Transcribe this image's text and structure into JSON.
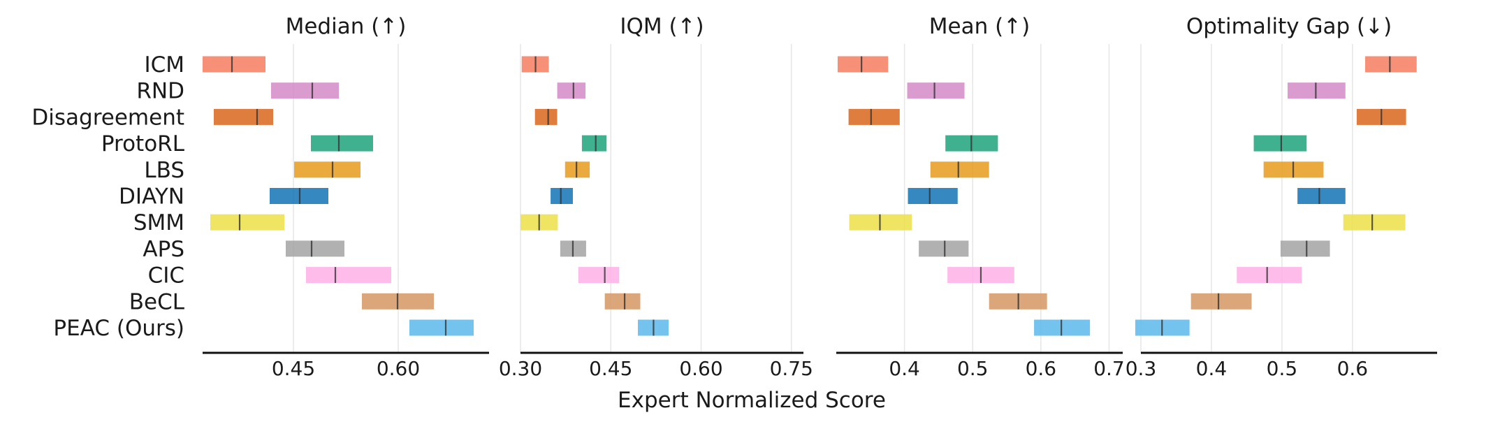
{
  "colors": {
    "ICM": "#f57c5e",
    "RND": "#d48ac7",
    "Disagreement": "#d9661c",
    "ProtoRL": "#1fa37a",
    "LBS": "#e89b1c",
    "DIAYN": "#1273b5",
    "SMM": "#ede047",
    "APS": "#a3a3a3",
    "CIC": "#fdb0e6",
    "BeCL": "#d39763",
    "PEAC (Ours)": "#5cb8ec"
  },
  "chart_data": {
    "type": "interval",
    "xlabel": "Expert Normalized Score",
    "methods": [
      "ICM",
      "RND",
      "Disagreement",
      "ProtoRL",
      "LBS",
      "DIAYN",
      "SMM",
      "APS",
      "CIC",
      "BeCL",
      "PEAC (Ours)"
    ],
    "panels": [
      {
        "title": "Median (↑)",
        "xlim": [
          0.32,
          0.73
        ],
        "ticks": [
          0.45,
          0.6
        ],
        "tick_labels": [
          "0.45",
          "0.60"
        ],
        "intervals": [
          {
            "method": "ICM",
            "low": 0.32,
            "mid": 0.362,
            "high": 0.41
          },
          {
            "method": "RND",
            "low": 0.418,
            "mid": 0.477,
            "high": 0.515
          },
          {
            "method": "Disagreement",
            "low": 0.336,
            "mid": 0.398,
            "high": 0.421
          },
          {
            "method": "ProtoRL",
            "low": 0.475,
            "mid": 0.515,
            "high": 0.564
          },
          {
            "method": "LBS",
            "low": 0.451,
            "mid": 0.506,
            "high": 0.546
          },
          {
            "method": "DIAYN",
            "low": 0.416,
            "mid": 0.459,
            "high": 0.5
          },
          {
            "method": "SMM",
            "low": 0.331,
            "mid": 0.373,
            "high": 0.437
          },
          {
            "method": "APS",
            "low": 0.439,
            "mid": 0.476,
            "high": 0.523
          },
          {
            "method": "CIC",
            "low": 0.468,
            "mid": 0.51,
            "high": 0.59
          },
          {
            "method": "BeCL",
            "low": 0.548,
            "mid": 0.599,
            "high": 0.651
          },
          {
            "method": "PEAC (Ours)",
            "low": 0.616,
            "mid": 0.668,
            "high": 0.708
          }
        ]
      },
      {
        "title": "IQM (↑)",
        "xlim": [
          0.3,
          0.77
        ],
        "ticks": [
          0.3,
          0.45,
          0.6,
          0.75
        ],
        "tick_labels": [
          "0.30",
          "0.45",
          "0.60",
          "0.75"
        ],
        "intervals": [
          {
            "method": "ICM",
            "low": 0.302,
            "mid": 0.325,
            "high": 0.347
          },
          {
            "method": "RND",
            "low": 0.361,
            "mid": 0.388,
            "high": 0.408
          },
          {
            "method": "Disagreement",
            "low": 0.324,
            "mid": 0.346,
            "high": 0.361
          },
          {
            "method": "ProtoRL",
            "low": 0.402,
            "mid": 0.425,
            "high": 0.443
          },
          {
            "method": "LBS",
            "low": 0.374,
            "mid": 0.393,
            "high": 0.415
          },
          {
            "method": "DIAYN",
            "low": 0.35,
            "mid": 0.367,
            "high": 0.387
          },
          {
            "method": "SMM",
            "low": 0.3,
            "mid": 0.331,
            "high": 0.362
          },
          {
            "method": "APS",
            "low": 0.366,
            "mid": 0.387,
            "high": 0.409
          },
          {
            "method": "CIC",
            "low": 0.396,
            "mid": 0.44,
            "high": 0.464
          },
          {
            "method": "BeCL",
            "low": 0.44,
            "mid": 0.473,
            "high": 0.499
          },
          {
            "method": "PEAC (Ours)",
            "low": 0.495,
            "mid": 0.521,
            "high": 0.546
          }
        ]
      },
      {
        "title": "Mean (↑)",
        "xlim": [
          0.3,
          0.72
        ],
        "ticks": [
          0.4,
          0.5,
          0.6,
          0.7
        ],
        "tick_labels": [
          "0.4",
          "0.5",
          "0.6",
          "0.7"
        ],
        "intervals": [
          {
            "method": "ICM",
            "low": 0.302,
            "mid": 0.337,
            "high": 0.376
          },
          {
            "method": "RND",
            "low": 0.404,
            "mid": 0.444,
            "high": 0.488
          },
          {
            "method": "Disagreement",
            "low": 0.318,
            "mid": 0.351,
            "high": 0.393
          },
          {
            "method": "ProtoRL",
            "low": 0.46,
            "mid": 0.498,
            "high": 0.537
          },
          {
            "method": "LBS",
            "low": 0.438,
            "mid": 0.479,
            "high": 0.524
          },
          {
            "method": "DIAYN",
            "low": 0.405,
            "mid": 0.437,
            "high": 0.478
          },
          {
            "method": "SMM",
            "low": 0.319,
            "mid": 0.364,
            "high": 0.411
          },
          {
            "method": "APS",
            "low": 0.421,
            "mid": 0.459,
            "high": 0.494
          },
          {
            "method": "CIC",
            "low": 0.463,
            "mid": 0.512,
            "high": 0.561
          },
          {
            "method": "BeCL",
            "low": 0.524,
            "mid": 0.567,
            "high": 0.609
          },
          {
            "method": "PEAC (Ours)",
            "low": 0.59,
            "mid": 0.63,
            "high": 0.672
          }
        ]
      },
      {
        "title": "Optimality Gap (↓)",
        "xlim": [
          0.3,
          0.72
        ],
        "ticks": [
          0.3,
          0.4,
          0.5,
          0.6
        ],
        "tick_labels": [
          "0.3",
          "0.4",
          "0.5",
          "0.6"
        ],
        "intervals": [
          {
            "method": "ICM",
            "low": 0.618,
            "mid": 0.653,
            "high": 0.691
          },
          {
            "method": "RND",
            "low": 0.508,
            "mid": 0.548,
            "high": 0.59
          },
          {
            "method": "Disagreement",
            "low": 0.606,
            "mid": 0.641,
            "high": 0.676
          },
          {
            "method": "ProtoRL",
            "low": 0.46,
            "mid": 0.499,
            "high": 0.535
          },
          {
            "method": "LBS",
            "low": 0.474,
            "mid": 0.516,
            "high": 0.559
          },
          {
            "method": "DIAYN",
            "low": 0.522,
            "mid": 0.553,
            "high": 0.59
          },
          {
            "method": "SMM",
            "low": 0.587,
            "mid": 0.628,
            "high": 0.675
          },
          {
            "method": "APS",
            "low": 0.498,
            "mid": 0.535,
            "high": 0.568
          },
          {
            "method": "CIC",
            "low": 0.436,
            "mid": 0.479,
            "high": 0.528
          },
          {
            "method": "BeCL",
            "low": 0.371,
            "mid": 0.41,
            "high": 0.457
          },
          {
            "method": "PEAC (Ours)",
            "low": 0.292,
            "mid": 0.33,
            "high": 0.369
          }
        ]
      }
    ]
  }
}
